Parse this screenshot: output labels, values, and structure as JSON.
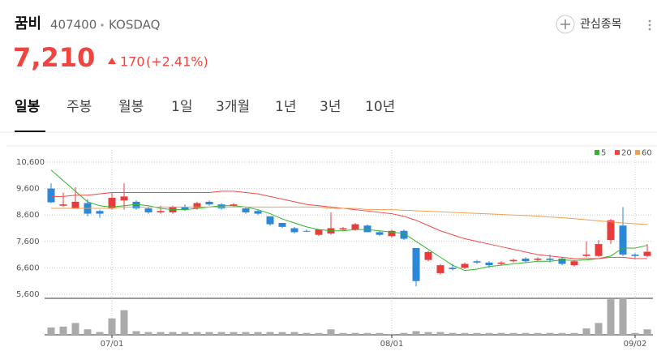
{
  "header": {
    "name": "꿈비",
    "code": "407400",
    "market": "KOSDAQ",
    "watch": "관심종목",
    "price": "7,210",
    "change": "170",
    "change_pct": "(+2.41%)"
  },
  "tabs": [
    "일봉",
    "주봉",
    "월봉",
    "1일",
    "3개월",
    "1년",
    "3년",
    "10년"
  ],
  "chart_data": {
    "type": "candlestick",
    "categories": [
      null,
      null,
      null,
      null,
      null,
      "07/01",
      null,
      null,
      null,
      null,
      null,
      null,
      null,
      null,
      null,
      null,
      null,
      null,
      null,
      null,
      null,
      null,
      null,
      null,
      null,
      null,
      null,
      null,
      "08/01",
      null,
      null,
      null,
      null,
      null,
      null,
      null,
      null,
      null,
      null,
      null,
      null,
      null,
      null,
      null,
      null,
      null,
      null,
      null,
      "09/02",
      null
    ],
    "open": [
      9600,
      8950,
      8850,
      9050,
      8750,
      8850,
      9150,
      9100,
      8850,
      8700,
      8700,
      8900,
      8850,
      9100,
      9000,
      8950,
      8850,
      8750,
      8550,
      8300,
      8100,
      8000,
      7850,
      7900,
      8050,
      8050,
      8200,
      7950,
      7800,
      8000,
      7350,
      6900,
      6400,
      6600,
      6600,
      6850,
      6800,
      6750,
      6850,
      6950,
      6900,
      6950,
      6950,
      6700,
      7050,
      7050,
      7650,
      8200,
      7100,
      7050
    ],
    "high": [
      9800,
      9450,
      9650,
      9200,
      8800,
      9450,
      9800,
      9150,
      8900,
      8950,
      8950,
      9000,
      9100,
      9150,
      9050,
      9050,
      8900,
      8800,
      8550,
      8300,
      8150,
      8050,
      8050,
      8700,
      8150,
      8300,
      8250,
      8000,
      8050,
      8050,
      7350,
      7250,
      6750,
      6750,
      6800,
      6900,
      6850,
      6850,
      6950,
      7000,
      7000,
      7100,
      7000,
      6900,
      7600,
      7650,
      8450,
      8900,
      7150,
      7500
    ],
    "low": [
      9050,
      8900,
      8850,
      8550,
      8500,
      8800,
      8800,
      8800,
      8650,
      8650,
      8650,
      8750,
      8800,
      8950,
      8800,
      8900,
      8650,
      8600,
      8200,
      8100,
      7900,
      7950,
      7800,
      7850,
      8000,
      8000,
      7950,
      7800,
      7750,
      7650,
      5900,
      6850,
      6350,
      6500,
      6550,
      6750,
      6600,
      6700,
      6800,
      6800,
      6850,
      6800,
      6700,
      6650,
      7000,
      7000,
      7500,
      7050,
      6950,
      7000
    ],
    "close": [
      9080,
      9000,
      9100,
      8650,
      8650,
      9250,
      9300,
      8850,
      8700,
      8750,
      8900,
      8800,
      9050,
      9000,
      8850,
      9000,
      8700,
      8650,
      8250,
      8150,
      7950,
      7980,
      8050,
      8100,
      8100,
      8250,
      7950,
      7850,
      8000,
      7700,
      6100,
      7200,
      6700,
      6550,
      6750,
      6800,
      6700,
      6800,
      6900,
      6850,
      6950,
      6900,
      6750,
      6850,
      7100,
      7500,
      8400,
      7100,
      7050,
      7210
    ],
    "volume": [
      80000,
      90000,
      130000,
      60000,
      30000,
      180000,
      270000,
      40000,
      30000,
      30000,
      30000,
      30000,
      30000,
      30000,
      30000,
      30000,
      30000,
      30000,
      30000,
      30000,
      30000,
      20000,
      20000,
      60000,
      20000,
      20000,
      20000,
      20000,
      10000,
      20000,
      40000,
      30000,
      30000,
      20000,
      20000,
      20000,
      20000,
      20000,
      20000,
      20000,
      20000,
      20000,
      20000,
      20000,
      70000,
      130000,
      390000,
      400000,
      20000,
      60000
    ],
    "ma": [
      {
        "name": "5",
        "color": "#2fb52f",
        "values": [
          10300,
          9900,
          9500,
          9100,
          8950,
          8900,
          8950,
          9000,
          8950,
          8850,
          8800,
          8800,
          8850,
          8900,
          8950,
          8950,
          8900,
          8800,
          8650,
          8450,
          8300,
          8150,
          8050,
          8000,
          8000,
          8050,
          8050,
          8000,
          7950,
          7900,
          7600,
          7300,
          7000,
          6700,
          6500,
          6550,
          6650,
          6700,
          6750,
          6800,
          6850,
          6850,
          6900,
          6880,
          6900,
          6950,
          7050,
          7350,
          7350,
          7450
        ]
      },
      {
        "name": "20",
        "color": "#f04848",
        "values": [
          9300,
          9300,
          9350,
          9350,
          9400,
          9450,
          9450,
          9450,
          9450,
          9450,
          9450,
          9450,
          9450,
          9450,
          9500,
          9500,
          9450,
          9400,
          9300,
          9200,
          9100,
          9000,
          8950,
          8900,
          8850,
          8800,
          8750,
          8700,
          8650,
          8550,
          8400,
          8200,
          8000,
          7850,
          7700,
          7600,
          7500,
          7400,
          7300,
          7200,
          7100,
          7050,
          7000,
          6950,
          6950,
          6950,
          7000,
          7000,
          6950,
          6950
        ]
      },
      {
        "name": "60",
        "color": "#f0a050",
        "values": [
          8850,
          8850,
          8850,
          8850,
          8850,
          8850,
          8900,
          8900,
          8900,
          8900,
          8900,
          8900,
          8900,
          8900,
          8900,
          8900,
          8900,
          8900,
          8900,
          8900,
          8900,
          8900,
          8900,
          8850,
          8850,
          8850,
          8800,
          8800,
          8800,
          8780,
          8760,
          8740,
          8720,
          8700,
          8680,
          8660,
          8640,
          8620,
          8600,
          8580,
          8560,
          8520,
          8500,
          8460,
          8420,
          8380,
          8340,
          8300,
          8270,
          8240
        ]
      }
    ],
    "up_color": "#e83c3c",
    "down_color": "#2b87d8",
    "ylim": [
      5600,
      10600
    ],
    "yticks": [
      {
        "value": 10600,
        "label": "10,600"
      },
      {
        "value": 9600,
        "label": "9,600"
      },
      {
        "value": 8600,
        "label": "8,600"
      },
      {
        "value": 7600,
        "label": "7,600"
      },
      {
        "value": 6600,
        "label": "6,600"
      },
      {
        "value": 5600,
        "label": "5,600"
      }
    ],
    "grid": true
  }
}
